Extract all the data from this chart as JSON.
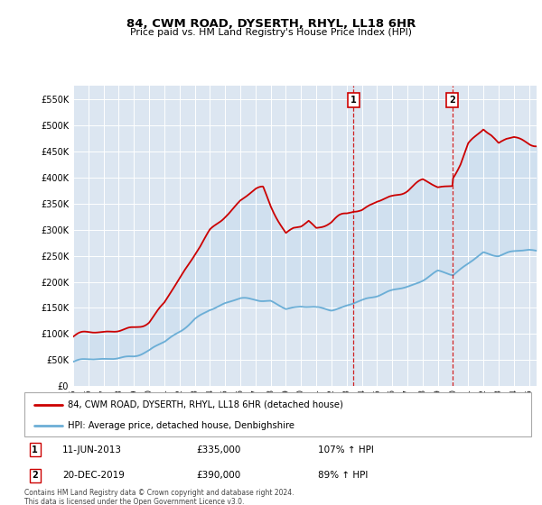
{
  "title": "84, CWM ROAD, DYSERTH, RHYL, LL18 6HR",
  "subtitle": "Price paid vs. HM Land Registry's House Price Index (HPI)",
  "ylabel_ticks": [
    "£0",
    "£50K",
    "£100K",
    "£150K",
    "£200K",
    "£250K",
    "£300K",
    "£350K",
    "£400K",
    "£450K",
    "£500K",
    "£550K"
  ],
  "ytick_values": [
    0,
    50000,
    100000,
    150000,
    200000,
    250000,
    300000,
    350000,
    400000,
    450000,
    500000,
    550000
  ],
  "ylim": [
    0,
    575000
  ],
  "legend_line1": "84, CWM ROAD, DYSERTH, RHYL, LL18 6HR (detached house)",
  "legend_line2": "HPI: Average price, detached house, Denbighshire",
  "marker1_date": "11-JUN-2013",
  "marker1_price": 335000,
  "marker1_hpi": "107% ↑ HPI",
  "marker1_label": "1",
  "marker2_date": "20-DEC-2019",
  "marker2_price": 390000,
  "marker2_hpi": "89% ↑ HPI",
  "marker2_label": "2",
  "footer": "Contains HM Land Registry data © Crown copyright and database right 2024.\nThis data is licensed under the Open Government Licence v3.0.",
  "red_color": "#cc0000",
  "blue_color": "#6baed6",
  "fill_color": "#c6dbef",
  "background_color": "#dce6f1",
  "hpi_ctrl_x": [
    1995,
    1996,
    1997,
    1998,
    1999,
    2000,
    2001,
    2002,
    2003,
    2004,
    2005,
    2006,
    2007,
    2008,
    2009,
    2010,
    2011,
    2012,
    2013,
    2014,
    2015,
    2016,
    2017,
    2018,
    2019,
    2020,
    2021,
    2022,
    2023,
    2024,
    2025
  ],
  "hpi_ctrl_y": [
    47000,
    49000,
    52000,
    55000,
    60000,
    68000,
    82000,
    105000,
    130000,
    148000,
    158000,
    165000,
    168000,
    165000,
    148000,
    152000,
    148000,
    148000,
    157000,
    163000,
    172000,
    182000,
    193000,
    205000,
    218000,
    212000,
    235000,
    258000,
    252000,
    255000,
    260000
  ],
  "prop_ctrl_x": [
    1995,
    1996,
    1997,
    1998,
    1999,
    2000,
    2001,
    2002,
    2003,
    2004,
    2005,
    2006,
    2007,
    2007.5,
    2008,
    2009,
    2009.5,
    2010,
    2010.5,
    2011,
    2012,
    2012.5,
    2013,
    2013.45,
    2014,
    2014.5,
    2015,
    2016,
    2017,
    2018,
    2019,
    2019.96,
    2020,
    2020.5,
    2021,
    2021.5,
    2022,
    2022.5,
    2023,
    2023.5,
    2024,
    2025
  ],
  "prop_ctrl_y": [
    95000,
    98000,
    102000,
    108000,
    115000,
    128000,
    155000,
    200000,
    255000,
    300000,
    330000,
    355000,
    370000,
    375000,
    345000,
    295000,
    305000,
    310000,
    320000,
    305000,
    310000,
    318000,
    325000,
    335000,
    340000,
    350000,
    358000,
    365000,
    375000,
    388000,
    380000,
    390000,
    405000,
    430000,
    465000,
    480000,
    495000,
    480000,
    460000,
    468000,
    472000,
    468000
  ],
  "xlim_start": 1995,
  "xlim_end": 2025.5,
  "marker1_x": 2013.45,
  "marker2_x": 2019.96
}
